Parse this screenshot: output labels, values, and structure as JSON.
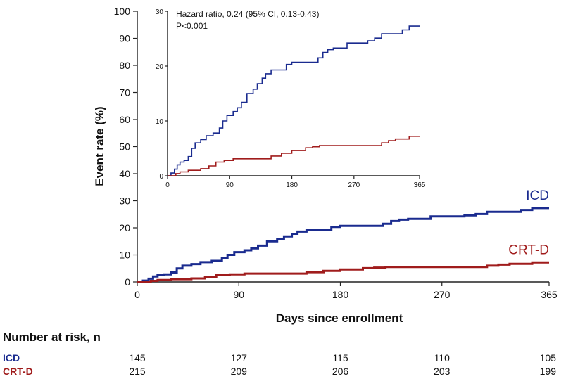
{
  "chart_data": [
    {
      "type": "line",
      "xlabel": "Days since enrollment",
      "ylabel": "Event rate (%)",
      "xlim": [
        0,
        365
      ],
      "ylim": [
        0,
        100
      ],
      "xticks": [
        0,
        90,
        180,
        270,
        365
      ],
      "yticks": [
        0,
        10,
        20,
        30,
        40,
        50,
        60,
        70,
        80,
        90,
        100
      ],
      "series": [
        {
          "name": "ICD",
          "color": "#1a2b8f",
          "points": [
            [
              0,
              0
            ],
            [
              5,
              0.5
            ],
            [
              10,
              1.2
            ],
            [
              14,
              2
            ],
            [
              18,
              2.5
            ],
            [
              24,
              2.8
            ],
            [
              30,
              3.5
            ],
            [
              35,
              5
            ],
            [
              40,
              6
            ],
            [
              48,
              6.6
            ],
            [
              56,
              7.3
            ],
            [
              66,
              7.8
            ],
            [
              75,
              8.7
            ],
            [
              80,
              10
            ],
            [
              86,
              11
            ],
            [
              95,
              11.7
            ],
            [
              101,
              12.4
            ],
            [
              107,
              13.4
            ],
            [
              115,
              15
            ],
            [
              124,
              15.8
            ],
            [
              130,
              16.8
            ],
            [
              137,
              17.8
            ],
            [
              142,
              18.6
            ],
            [
              150,
              19.3
            ],
            [
              168,
              19.3
            ],
            [
              172,
              20.3
            ],
            [
              180,
              20.7
            ],
            [
              210,
              20.7
            ],
            [
              218,
              21.5
            ],
            [
              225,
              22.5
            ],
            [
              232,
              23
            ],
            [
              240,
              23.3
            ],
            [
              255,
              23.3
            ],
            [
              260,
              24.2
            ],
            [
              280,
              24.2
            ],
            [
              290,
              24.6
            ],
            [
              300,
              25.1
            ],
            [
              310,
              25.9
            ],
            [
              330,
              25.9
            ],
            [
              340,
              26.6
            ],
            [
              350,
              27.3
            ],
            [
              365,
              27.3
            ]
          ]
        },
        {
          "name": "CRT-D",
          "color": "#a01c1c",
          "points": [
            [
              0,
              0
            ],
            [
              12,
              0.4
            ],
            [
              18,
              0.7
            ],
            [
              30,
              1
            ],
            [
              48,
              1.3
            ],
            [
              60,
              1.8
            ],
            [
              70,
              2.5
            ],
            [
              82,
              2.8
            ],
            [
              95,
              3.1
            ],
            [
              130,
              3.1
            ],
            [
              150,
              3.6
            ],
            [
              165,
              4.1
            ],
            [
              180,
              4.6
            ],
            [
              190,
              4.6
            ],
            [
              200,
              5.1
            ],
            [
              210,
              5.3
            ],
            [
              220,
              5.5
            ],
            [
              300,
              5.5
            ],
            [
              310,
              6
            ],
            [
              320,
              6.4
            ],
            [
              330,
              6.7
            ],
            [
              350,
              7.2
            ],
            [
              365,
              7.2
            ]
          ]
        }
      ],
      "number_at_risk": {
        "title": "Number at risk, n",
        "rows": [
          {
            "label": "ICD",
            "values": [
              "145",
              "127",
              "115",
              "110",
              "105"
            ]
          },
          {
            "label": "CRT-D",
            "values": [
              "215",
              "209",
              "206",
              "203",
              "199"
            ]
          }
        ]
      }
    },
    {
      "type": "line",
      "inset": true,
      "xlim": [
        0,
        365
      ],
      "ylim": [
        0,
        30
      ],
      "xticks": [
        0,
        90,
        180,
        270,
        365
      ],
      "yticks": [
        0,
        10,
        20,
        30
      ],
      "annotation": [
        "Hazard ratio, 0.24 (95% CI, 0.13-0.43)",
        "P<0.001"
      ]
    }
  ]
}
